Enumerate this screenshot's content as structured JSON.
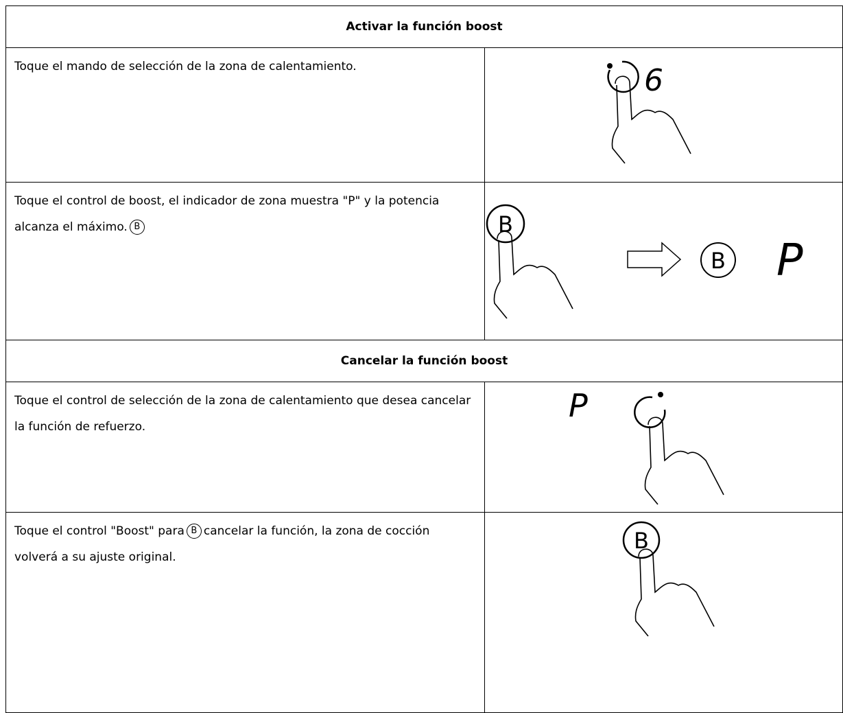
{
  "table": {
    "rows": [
      {
        "heading": "Activar la función boost"
      },
      {
        "text": "Toque el mando de selección de la zona de calentamiento.",
        "display": "6"
      },
      {
        "text_before": "Toque el control de boost, el  indicador de zona muestra \"P\" y la potencia alcanza el máximo.",
        "symbol": "B",
        "text_after": "",
        "button": "B",
        "result_button": "B",
        "display": "P"
      },
      {
        "heading": "Cancelar la función boost"
      },
      {
        "text": "Toque el control de selección de la zona de calentamiento que desea cancelar la función de refuerzo.",
        "display": "P"
      },
      {
        "text_before": "Toque el control \"Boost\" para",
        "symbol": "B",
        "text_after": "cancelar la función, la zona de cocción volverá a su ajuste original.",
        "button": "B"
      }
    ]
  }
}
